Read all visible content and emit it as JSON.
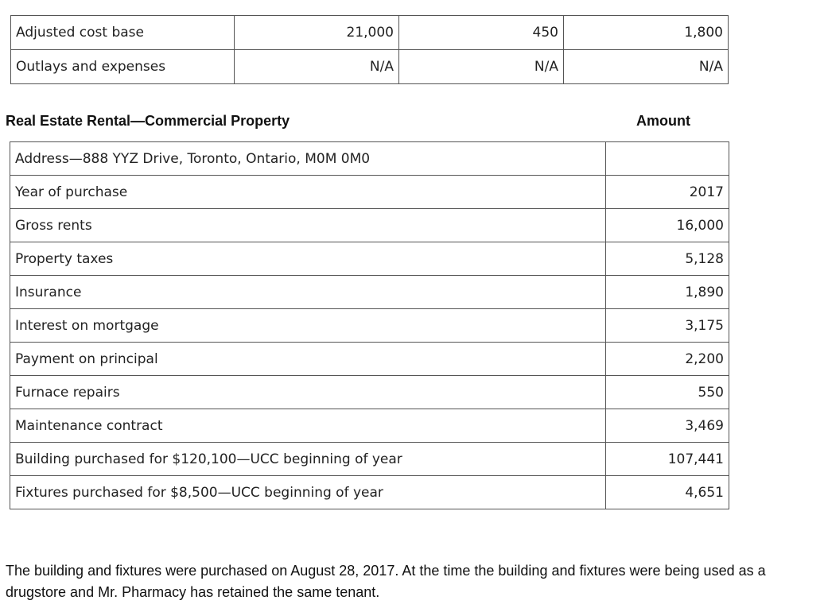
{
  "top_table": {
    "rows": [
      {
        "label": "Adjusted cost base",
        "values": [
          "21,000",
          "450",
          "1,800"
        ]
      },
      {
        "label": "Outlays and expenses",
        "values": [
          "N/A",
          "N/A",
          "N/A"
        ]
      }
    ]
  },
  "section": {
    "title": "Real Estate Rental—Commercial Property",
    "amount_header": "Amount"
  },
  "rental_table": {
    "rows": [
      {
        "label": "Address—888 YYZ Drive, Toronto, Ontario, M0M 0M0",
        "amount": ""
      },
      {
        "label": "Year of purchase",
        "amount": "2017"
      },
      {
        "label": "Gross rents",
        "amount": "16,000"
      },
      {
        "label": "Property taxes",
        "amount": "5,128"
      },
      {
        "label": "Insurance",
        "amount": "1,890"
      },
      {
        "label": "Interest on mortgage",
        "amount": "3,175"
      },
      {
        "label": "Payment on principal",
        "amount": "2,200"
      },
      {
        "label": "Furnace repairs",
        "amount": "550"
      },
      {
        "label": "Maintenance contract",
        "amount": "3,469"
      },
      {
        "label": "Building purchased for $120,100—UCC beginning of year",
        "amount": "107,441"
      },
      {
        "label": "Fixtures purchased for $8,500—UCC beginning of year",
        "amount": "4,651"
      }
    ]
  },
  "footnote": "The building and fixtures were purchased on August 28, 2017. At the time the building and fixtures were being used as a drugstore and Mr. Pharmacy has retained the same tenant."
}
